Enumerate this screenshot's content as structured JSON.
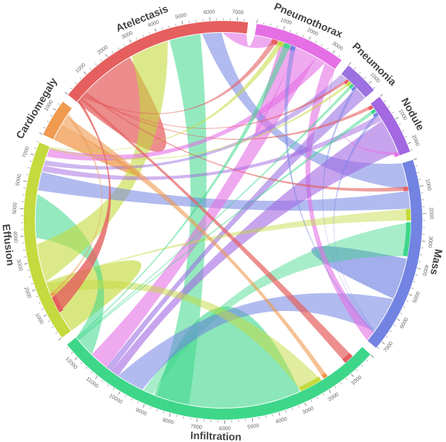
{
  "figure": {
    "kind": "chord-diagram",
    "background": "#ffffff",
    "tick_label_color": "#666666",
    "category_label_color": "#434343"
  },
  "chart_data": {
    "type": "chord",
    "title": "",
    "units": "label co-occurrence counts (tick scale)",
    "tick_major": 1000,
    "tick_minor": 250,
    "gap_degrees": 2.5,
    "start_angle": -51,
    "legend_position": "none",
    "grid": false,
    "categories": [
      {
        "name": "Atelectasis",
        "total": 7400,
        "color": "#e55f5f"
      },
      {
        "name": "Pneumothorax",
        "total": 3400,
        "color": "#e56fe5"
      },
      {
        "name": "Pneumonia",
        "total": 1300,
        "color": "#9c71e2"
      },
      {
        "name": "Nodule",
        "total": 2300,
        "color": "#a368e2"
      },
      {
        "name": "Mass",
        "total": 7300,
        "color": "#7283e2"
      },
      {
        "name": "Infiltration",
        "total": 12600,
        "color": "#3ed78a"
      },
      {
        "name": "Effusion",
        "total": 7500,
        "color": "#c4da3e"
      },
      {
        "name": "Cardiomegaly",
        "total": 1400,
        "color": "#ef9a4f"
      }
    ],
    "ribbons": [
      {
        "from": [
          "Infiltration",
          3050,
          8800
        ],
        "to": [
          "Infiltration",
          2990,
          3045
        ],
        "color": "Infiltration",
        "opacity": 0.6
      },
      {
        "from": [
          "Effusion",
          0,
          2100
        ],
        "to": [
          "Effusion",
          30,
          90
        ],
        "color": "Effusion",
        "opacity": 0.65
      },
      {
        "from": [
          "Atelectasis",
          0,
          2700
        ],
        "to": [
          "Atelectasis",
          30,
          140
        ],
        "color": "Atelectasis",
        "opacity": 0.72
      },
      {
        "from": [
          "Mass",
          3750,
          5300
        ],
        "to": [
          "Mass",
          5310,
          5380
        ],
        "color": "Mass",
        "opacity": 0.65
      },
      {
        "from": [
          "Cardiomegaly",
          0,
          620
        ],
        "to": [
          "Cardiomegaly",
          630,
          680
        ],
        "color": "Cardiomegaly",
        "opacity": 0.75
      },
      {
        "from": [
          "Pneumothorax",
          1050,
          1680
        ],
        "to": [
          "Pneumothorax",
          1682,
          1698
        ],
        "color": "Pneumothorax",
        "opacity": 0.6
      },
      {
        "from": [
          "Infiltration",
          7400,
          8700
        ],
        "to": [
          "Atelectasis",
          4380,
          5600
        ],
        "color": "Infiltration",
        "opacity": 0.55
      },
      {
        "from": [
          "Infiltration",
          11700,
          12600
        ],
        "to": [
          "Effusion",
          3900,
          5600
        ],
        "color": "Infiltration",
        "opacity": 0.55
      },
      {
        "from": [
          "Infiltration",
          8850,
          9250
        ],
        "to": [
          "Mass",
          2320,
          3650
        ],
        "color": "Infiltration",
        "opacity": 0.45
      },
      {
        "from": [
          "Effusion",
          2150,
          3650
        ],
        "to": [
          "Atelectasis",
          2780,
          4300
        ],
        "color": "Effusion",
        "opacity": 0.6
      },
      {
        "from": [
          "Mass",
          0,
          1050
        ],
        "to": [
          "Atelectasis",
          5670,
          6420
        ],
        "color": "Mass",
        "opacity": 0.55
      },
      {
        "from": [
          "Pneumothorax",
          0,
          1050
        ],
        "to": [
          "Atelectasis",
          6470,
          7400
        ],
        "color": "Pneumothorax",
        "opacity": 0.6
      },
      {
        "from": [
          "Mass",
          1100,
          1790
        ],
        "to": [
          "Effusion",
          5750,
          6480
        ],
        "color": "Mass",
        "opacity": 0.55
      },
      {
        "from": [
          "Mass",
          5400,
          6850
        ],
        "to": [
          "Infiltration",
          9300,
          10380
        ],
        "color": "Mass",
        "opacity": 0.55
      },
      {
        "from": [
          "Pneumothorax",
          1700,
          2550
        ],
        "to": [
          "Infiltration",
          10950,
          11700
        ],
        "color": "Pneumothorax",
        "opacity": 0.6
      },
      {
        "from": [
          "Pneumothorax",
          2550,
          2950
        ],
        "to": [
          "Effusion",
          7100,
          7450
        ],
        "color": "Pneumothorax",
        "opacity": 0.6
      },
      {
        "from": [
          "Pneumothorax",
          2950,
          3400
        ],
        "to": [
          "Mass",
          6880,
          7300
        ],
        "color": "Pneumothorax",
        "opacity": 0.6
      },
      {
        "from": [
          "Pneumonia",
          800,
          1300
        ],
        "to": [
          "Infiltration",
          10700,
          10950
        ],
        "color": "Pneumonia",
        "opacity": 0.6
      },
      {
        "from": [
          "Pneumonia",
          0,
          280
        ],
        "to": [
          "Effusion",
          6750,
          6950
        ],
        "color": "Pneumonia",
        "opacity": 0.5
      },
      {
        "from": [
          "Nodule",
          800,
          2150
        ],
        "to": [
          "Infiltration",
          10380,
          10700
        ],
        "color": "Nodule",
        "opacity": 0.6
      },
      {
        "from": [
          "Nodule",
          530,
          790
        ],
        "to": [
          "Effusion",
          6500,
          6740
        ],
        "color": "Nodule",
        "opacity": 0.5
      },
      {
        "from": [
          "Effusion",
          1600,
          2100
        ],
        "to": [
          "Infiltration",
          2050,
          2950
        ],
        "color": "Effusion",
        "opacity": 0.5
      },
      {
        "from": [
          "Effusion",
          2100,
          2150
        ],
        "to": [
          "Mass",
          1800,
          2250
        ],
        "color": "Effusion",
        "opacity": 0.45
      },
      {
        "from": [
          "Cardiomegaly",
          690,
          1040
        ],
        "to": [
          "Infiltration",
          1760,
          1940
        ],
        "color": "Cardiomegaly",
        "opacity": 0.6
      },
      {
        "from": [
          "Cardiomegaly",
          1050,
          1160
        ],
        "to": [
          "Effusion",
          1550,
          1650
        ],
        "color": "Cardiomegaly",
        "opacity": 0.5
      },
      {
        "from": [
          "Atelectasis",
          30,
          140
        ],
        "to": [
          "Effusion",
          850,
          1500
        ],
        "color": "Atelectasis",
        "opacity": 0.8
      },
      {
        "from": [
          "Atelectasis",
          150,
          260
        ],
        "to": [
          "Infiltration",
          520,
          900
        ],
        "color": "Atelectasis",
        "opacity": 0.7
      },
      {
        "from": [
          "Atelectasis",
          270,
          340
        ],
        "to": [
          "Pneumothorax",
          700,
          920
        ],
        "color": "Atelectasis",
        "opacity": 0.6
      },
      {
        "from": [
          "Atelectasis",
          350,
          400
        ],
        "to": [
          "Pneumonia",
          290,
          400
        ],
        "color": "Atelectasis",
        "opacity": 0.6
      },
      {
        "from": [
          "Atelectasis",
          410,
          460
        ],
        "to": [
          "Nodule",
          60,
          190
        ],
        "color": "Atelectasis",
        "opacity": 0.6
      },
      {
        "from": [
          "Atelectasis",
          470,
          530
        ],
        "to": [
          "Mass",
          930,
          1090
        ],
        "color": "Atelectasis",
        "opacity": 0.6
      },
      {
        "from": [
          "Effusion",
          7460,
          7500
        ],
        "to": [
          "Pneumothorax",
          950,
          1170
        ],
        "color": "Effusion",
        "opacity": 0.55
      },
      {
        "from": [
          "Infiltration",
          12550,
          12600
        ],
        "to": [
          "Pneumothorax",
          1200,
          1440
        ],
        "color": "Infiltration",
        "opacity": 0.55
      },
      {
        "from": [
          "Mass",
          6880,
          6920
        ],
        "to": [
          "Pneumothorax",
          1470,
          1660
        ],
        "color": "Mass",
        "opacity": 0.5
      },
      {
        "from": [
          "Effusion",
          7400,
          7460
        ],
        "to": [
          "Pneumonia",
          420,
          530
        ],
        "color": "Effusion",
        "opacity": 0.5
      },
      {
        "from": [
          "Infiltration",
          12500,
          12550
        ],
        "to": [
          "Pneumonia",
          550,
          660
        ],
        "color": "Infiltration",
        "opacity": 0.5
      },
      {
        "from": [
          "Mass",
          6850,
          6880
        ],
        "to": [
          "Pneumonia",
          680,
          790
        ],
        "color": "Mass",
        "opacity": 0.45
      },
      {
        "from": [
          "Infiltration",
          12450,
          12500
        ],
        "to": [
          "Nodule",
          240,
          370
        ],
        "color": "Infiltration",
        "opacity": 0.5
      },
      {
        "from": [
          "Mass",
          6820,
          6850
        ],
        "to": [
          "Nodule",
          400,
          530
        ],
        "color": "Mass",
        "opacity": 0.45
      },
      {
        "from": [
          "Pneumothorax",
          3350,
          3400
        ],
        "to": [
          "Nodule",
          2160,
          2300
        ],
        "color": "Pneumothorax",
        "opacity": 0.5
      }
    ],
    "endpoint_markers": [
      {
        "on": "Pneumothorax",
        "partner": "Atelectasis",
        "start": 700,
        "end": 920
      },
      {
        "on": "Pneumothorax",
        "partner": "Effusion",
        "start": 950,
        "end": 1170
      },
      {
        "on": "Pneumothorax",
        "partner": "Infiltration",
        "start": 1200,
        "end": 1440
      },
      {
        "on": "Pneumothorax",
        "partner": "Mass",
        "start": 1470,
        "end": 1660
      },
      {
        "on": "Pneumonia",
        "partner": "Atelectasis",
        "start": 290,
        "end": 400
      },
      {
        "on": "Pneumonia",
        "partner": "Effusion",
        "start": 420,
        "end": 530
      },
      {
        "on": "Pneumonia",
        "partner": "Infiltration",
        "start": 550,
        "end": 660
      },
      {
        "on": "Pneumonia",
        "partner": "Mass",
        "start": 680,
        "end": 790
      },
      {
        "on": "Nodule",
        "partner": "Atelectasis",
        "start": 60,
        "end": 190
      },
      {
        "on": "Nodule",
        "partner": "Infiltration",
        "start": 240,
        "end": 370
      },
      {
        "on": "Nodule",
        "partner": "Mass",
        "start": 400,
        "end": 530
      },
      {
        "on": "Nodule",
        "partner": "Pneumothorax",
        "start": 2160,
        "end": 2300
      },
      {
        "on": "Mass",
        "partner": "Atelectasis",
        "start": 930,
        "end": 1090
      },
      {
        "on": "Mass",
        "partner": "Effusion",
        "start": 1800,
        "end": 2250
      },
      {
        "on": "Mass",
        "partner": "Infiltration",
        "start": 2320,
        "end": 3650
      },
      {
        "on": "Infiltration",
        "partner": "Atelectasis",
        "start": 520,
        "end": 900
      },
      {
        "on": "Infiltration",
        "partner": "Cardiomegaly",
        "start": 1760,
        "end": 1940
      },
      {
        "on": "Infiltration",
        "partner": "Effusion",
        "start": 2050,
        "end": 2950
      },
      {
        "on": "Effusion",
        "partner": "Atelectasis",
        "start": 850,
        "end": 1500
      },
      {
        "on": "Effusion",
        "partner": "Cardiomegaly",
        "start": 1550,
        "end": 1650
      }
    ]
  }
}
